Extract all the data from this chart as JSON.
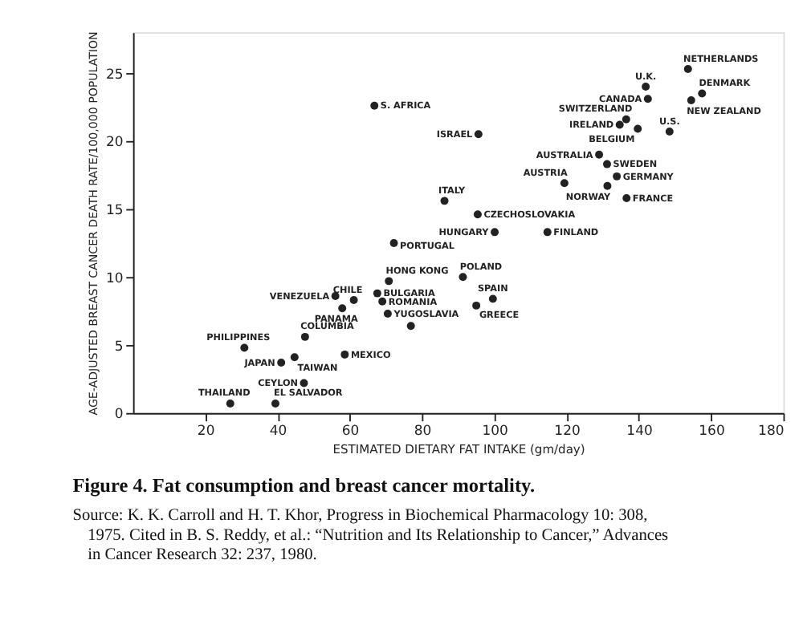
{
  "chart_data": {
    "type": "scatter",
    "title": "Figure 4. Fat consumption and breast cancer mortality.",
    "xlabel": "ESTIMATED DIETARY FAT INTAKE (gm/day)",
    "ylabel": "AGE-ADJUSTED BREAST CANCER DEATH RATE/100,000 POPULATION",
    "x": [
      153.6,
      141.9,
      157.5,
      142.5,
      154.5,
      136.5,
      134.7,
      139.7,
      148.5,
      95.6,
      129.0,
      131.2,
      133.9,
      119.4,
      131.3,
      136.6,
      86.2,
      95.4,
      100.1,
      114.7,
      66.8,
      72.2,
      70.8,
      91.3,
      67.6,
      61.1,
      56.0,
      57.9,
      69.0,
      70.5,
      76.9,
      95.0,
      99.6,
      47.6,
      30.8,
      58.6,
      44.7,
      41.0,
      47.3,
      26.9,
      39.4
    ],
    "values": [
      25.3,
      24.0,
      23.5,
      23.1,
      23.0,
      21.6,
      21.2,
      20.9,
      20.7,
      20.5,
      19.0,
      18.3,
      17.4,
      16.9,
      16.7,
      15.8,
      15.6,
      14.6,
      13.3,
      13.3,
      22.6,
      12.5,
      9.7,
      10.0,
      8.8,
      8.3,
      8.6,
      7.7,
      8.2,
      7.3,
      6.4,
      7.9,
      8.4,
      5.6,
      4.8,
      4.3,
      4.1,
      3.7,
      2.2,
      0.7,
      0.7
    ],
    "color": "#222222",
    "marker": "circle",
    "xlim": [
      0,
      180
    ],
    "xticks": [
      20,
      40,
      60,
      80,
      100,
      120,
      140,
      160,
      180
    ],
    "ylim": [
      0,
      28
    ],
    "yticks": [
      0,
      5,
      10,
      15,
      20,
      25
    ],
    "grid": false,
    "annotations": [
      {
        "text": "NETHERLANDS",
        "x": 153.6,
        "y": 25.3
      },
      {
        "text": "U.K.",
        "x": 141.9,
        "y": 24.0
      },
      {
        "text": "DENMARK",
        "x": 157.5,
        "y": 23.5
      },
      {
        "text": "CANADA",
        "x": 142.5,
        "y": 23.1
      },
      {
        "text": "NEW ZEALAND",
        "x": 154.5,
        "y": 23.0
      },
      {
        "text": "SWITZERLAND",
        "x": 136.5,
        "y": 21.6
      },
      {
        "text": "IRELAND",
        "x": 134.7,
        "y": 21.2
      },
      {
        "text": "BELGIUM",
        "x": 139.7,
        "y": 20.9
      },
      {
        "text": "U.S.",
        "x": 148.5,
        "y": 20.7
      },
      {
        "text": "ISRAEL",
        "x": 95.6,
        "y": 20.5
      },
      {
        "text": "AUSTRALIA",
        "x": 129.0,
        "y": 19.0
      },
      {
        "text": "SWEDEN",
        "x": 131.2,
        "y": 18.3
      },
      {
        "text": "GERMANY",
        "x": 133.9,
        "y": 17.4
      },
      {
        "text": "AUSTRIA",
        "x": 119.4,
        "y": 16.9
      },
      {
        "text": "NORWAY",
        "x": 131.3,
        "y": 16.7
      },
      {
        "text": "FRANCE",
        "x": 136.6,
        "y": 15.8
      },
      {
        "text": "ITALY",
        "x": 86.2,
        "y": 15.6
      },
      {
        "text": "CZECHOSLOVAKIA",
        "x": 95.4,
        "y": 14.6
      },
      {
        "text": "HUNGARY",
        "x": 100.1,
        "y": 13.3
      },
      {
        "text": "FINLAND",
        "x": 114.7,
        "y": 13.3
      },
      {
        "text": "S. AFRICA",
        "x": 66.8,
        "y": 22.6
      },
      {
        "text": "PORTUGAL",
        "x": 72.2,
        "y": 12.5
      },
      {
        "text": "HONG KONG",
        "x": 70.8,
        "y": 9.7
      },
      {
        "text": "POLAND",
        "x": 91.3,
        "y": 10.0
      },
      {
        "text": "BULGARIA",
        "x": 67.6,
        "y": 8.8
      },
      {
        "text": "CHILE",
        "x": 61.1,
        "y": 8.3
      },
      {
        "text": "VENEZUELA",
        "x": 56.0,
        "y": 8.6
      },
      {
        "text": "PANAMA",
        "x": 57.9,
        "y": 7.7
      },
      {
        "text": "ROMANIA",
        "x": 69.0,
        "y": 8.2
      },
      {
        "text": "YUGOSLAVIA",
        "x": 70.5,
        "y": 7.3
      },
      {
        "text": "GREECE",
        "x": 95.0,
        "y": 7.9
      },
      {
        "text": "SPAIN",
        "x": 99.6,
        "y": 8.4
      },
      {
        "text": "COLUMBIA",
        "x": 47.6,
        "y": 5.6
      },
      {
        "text": "PHILIPPINES",
        "x": 30.8,
        "y": 4.8
      },
      {
        "text": "MEXICO",
        "x": 58.6,
        "y": 4.3
      },
      {
        "text": "TAIWAN",
        "x": 44.7,
        "y": 4.1
      },
      {
        "text": "JAPAN",
        "x": 41.0,
        "y": 3.7
      },
      {
        "text": "CEYLON",
        "x": 47.3,
        "y": 2.2
      },
      {
        "text": "THAILAND",
        "x": 26.9,
        "y": 0.7
      },
      {
        "text": "EL SALVADOR",
        "x": 39.4,
        "y": 0.7
      },
      "Source: K. K. Carroll and H. T. Khor, Progress in Biochemical Pharmacology 10: 308, 1975. Cited in B. S. Reddy, et al.: “Nutrition and Its Relationship to Cancer,” Advances in Cancer Research 32: 237, 1980."
    ]
  }
}
